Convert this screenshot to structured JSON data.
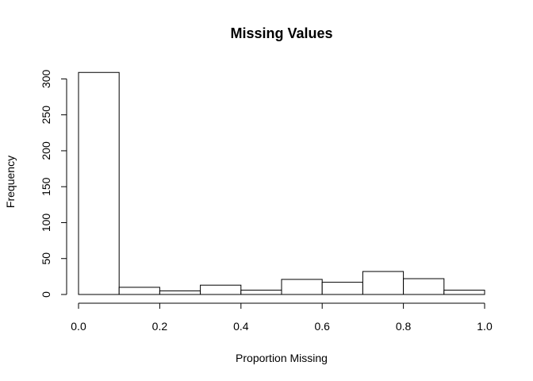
{
  "chart_data": {
    "type": "bar",
    "title": "Missing Values",
    "xlabel": "Proportion Missing",
    "ylabel": "Frequency",
    "bins": [
      {
        "from": 0.0,
        "to": 0.1,
        "count": 309
      },
      {
        "from": 0.1,
        "to": 0.2,
        "count": 10
      },
      {
        "from": 0.2,
        "to": 0.3,
        "count": 5
      },
      {
        "from": 0.3,
        "to": 0.4,
        "count": 13
      },
      {
        "from": 0.4,
        "to": 0.5,
        "count": 6
      },
      {
        "from": 0.5,
        "to": 0.6,
        "count": 21
      },
      {
        "from": 0.6,
        "to": 0.7,
        "count": 17
      },
      {
        "from": 0.7,
        "to": 0.8,
        "count": 32
      },
      {
        "from": 0.8,
        "to": 0.9,
        "count": 22
      },
      {
        "from": 0.9,
        "to": 1.0,
        "count": 6
      }
    ],
    "xlim": [
      0,
      1
    ],
    "ylim": [
      0,
      309
    ],
    "x_ticks": [
      0.0,
      0.2,
      0.4,
      0.6,
      0.8,
      1.0
    ],
    "x_tick_labels": [
      "0.0",
      "0.2",
      "0.4",
      "0.6",
      "0.8",
      "1.0"
    ],
    "y_ticks": [
      0,
      50,
      100,
      150,
      200,
      250,
      300
    ],
    "y_tick_labels": [
      "0",
      "50",
      "100",
      "150",
      "200",
      "250",
      "300"
    ],
    "grid": false,
    "legend": "none",
    "colors": {
      "bar_fill": "#ffffff",
      "bar_stroke": "#000000",
      "axis": "#000000",
      "background": "#ffffff"
    }
  }
}
